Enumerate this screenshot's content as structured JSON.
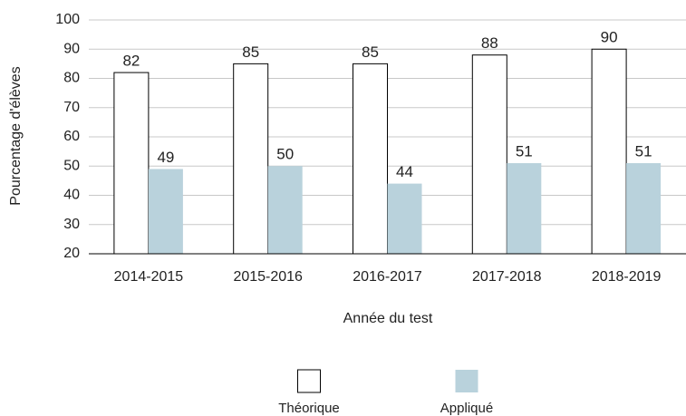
{
  "chart_data": {
    "type": "bar",
    "y_label": "Pourcentage d'élèves",
    "x_label": "Année du test",
    "categories": [
      "2014-2015",
      "2015-2016",
      "2016-2017",
      "2017-2018",
      "2018-2019"
    ],
    "series": [
      {
        "name": "Théorique",
        "color": "#ffffff",
        "values": [
          82,
          85,
          85,
          88,
          90
        ]
      },
      {
        "name": "Appliqué",
        "color": "#b9d2dc",
        "values": [
          49,
          50,
          44,
          51,
          51
        ]
      }
    ],
    "ylim": [
      20,
      100
    ],
    "yticks": [
      20,
      30,
      40,
      50,
      60,
      70,
      80,
      90,
      100
    ],
    "grid": true,
    "legend": "bottom"
  }
}
